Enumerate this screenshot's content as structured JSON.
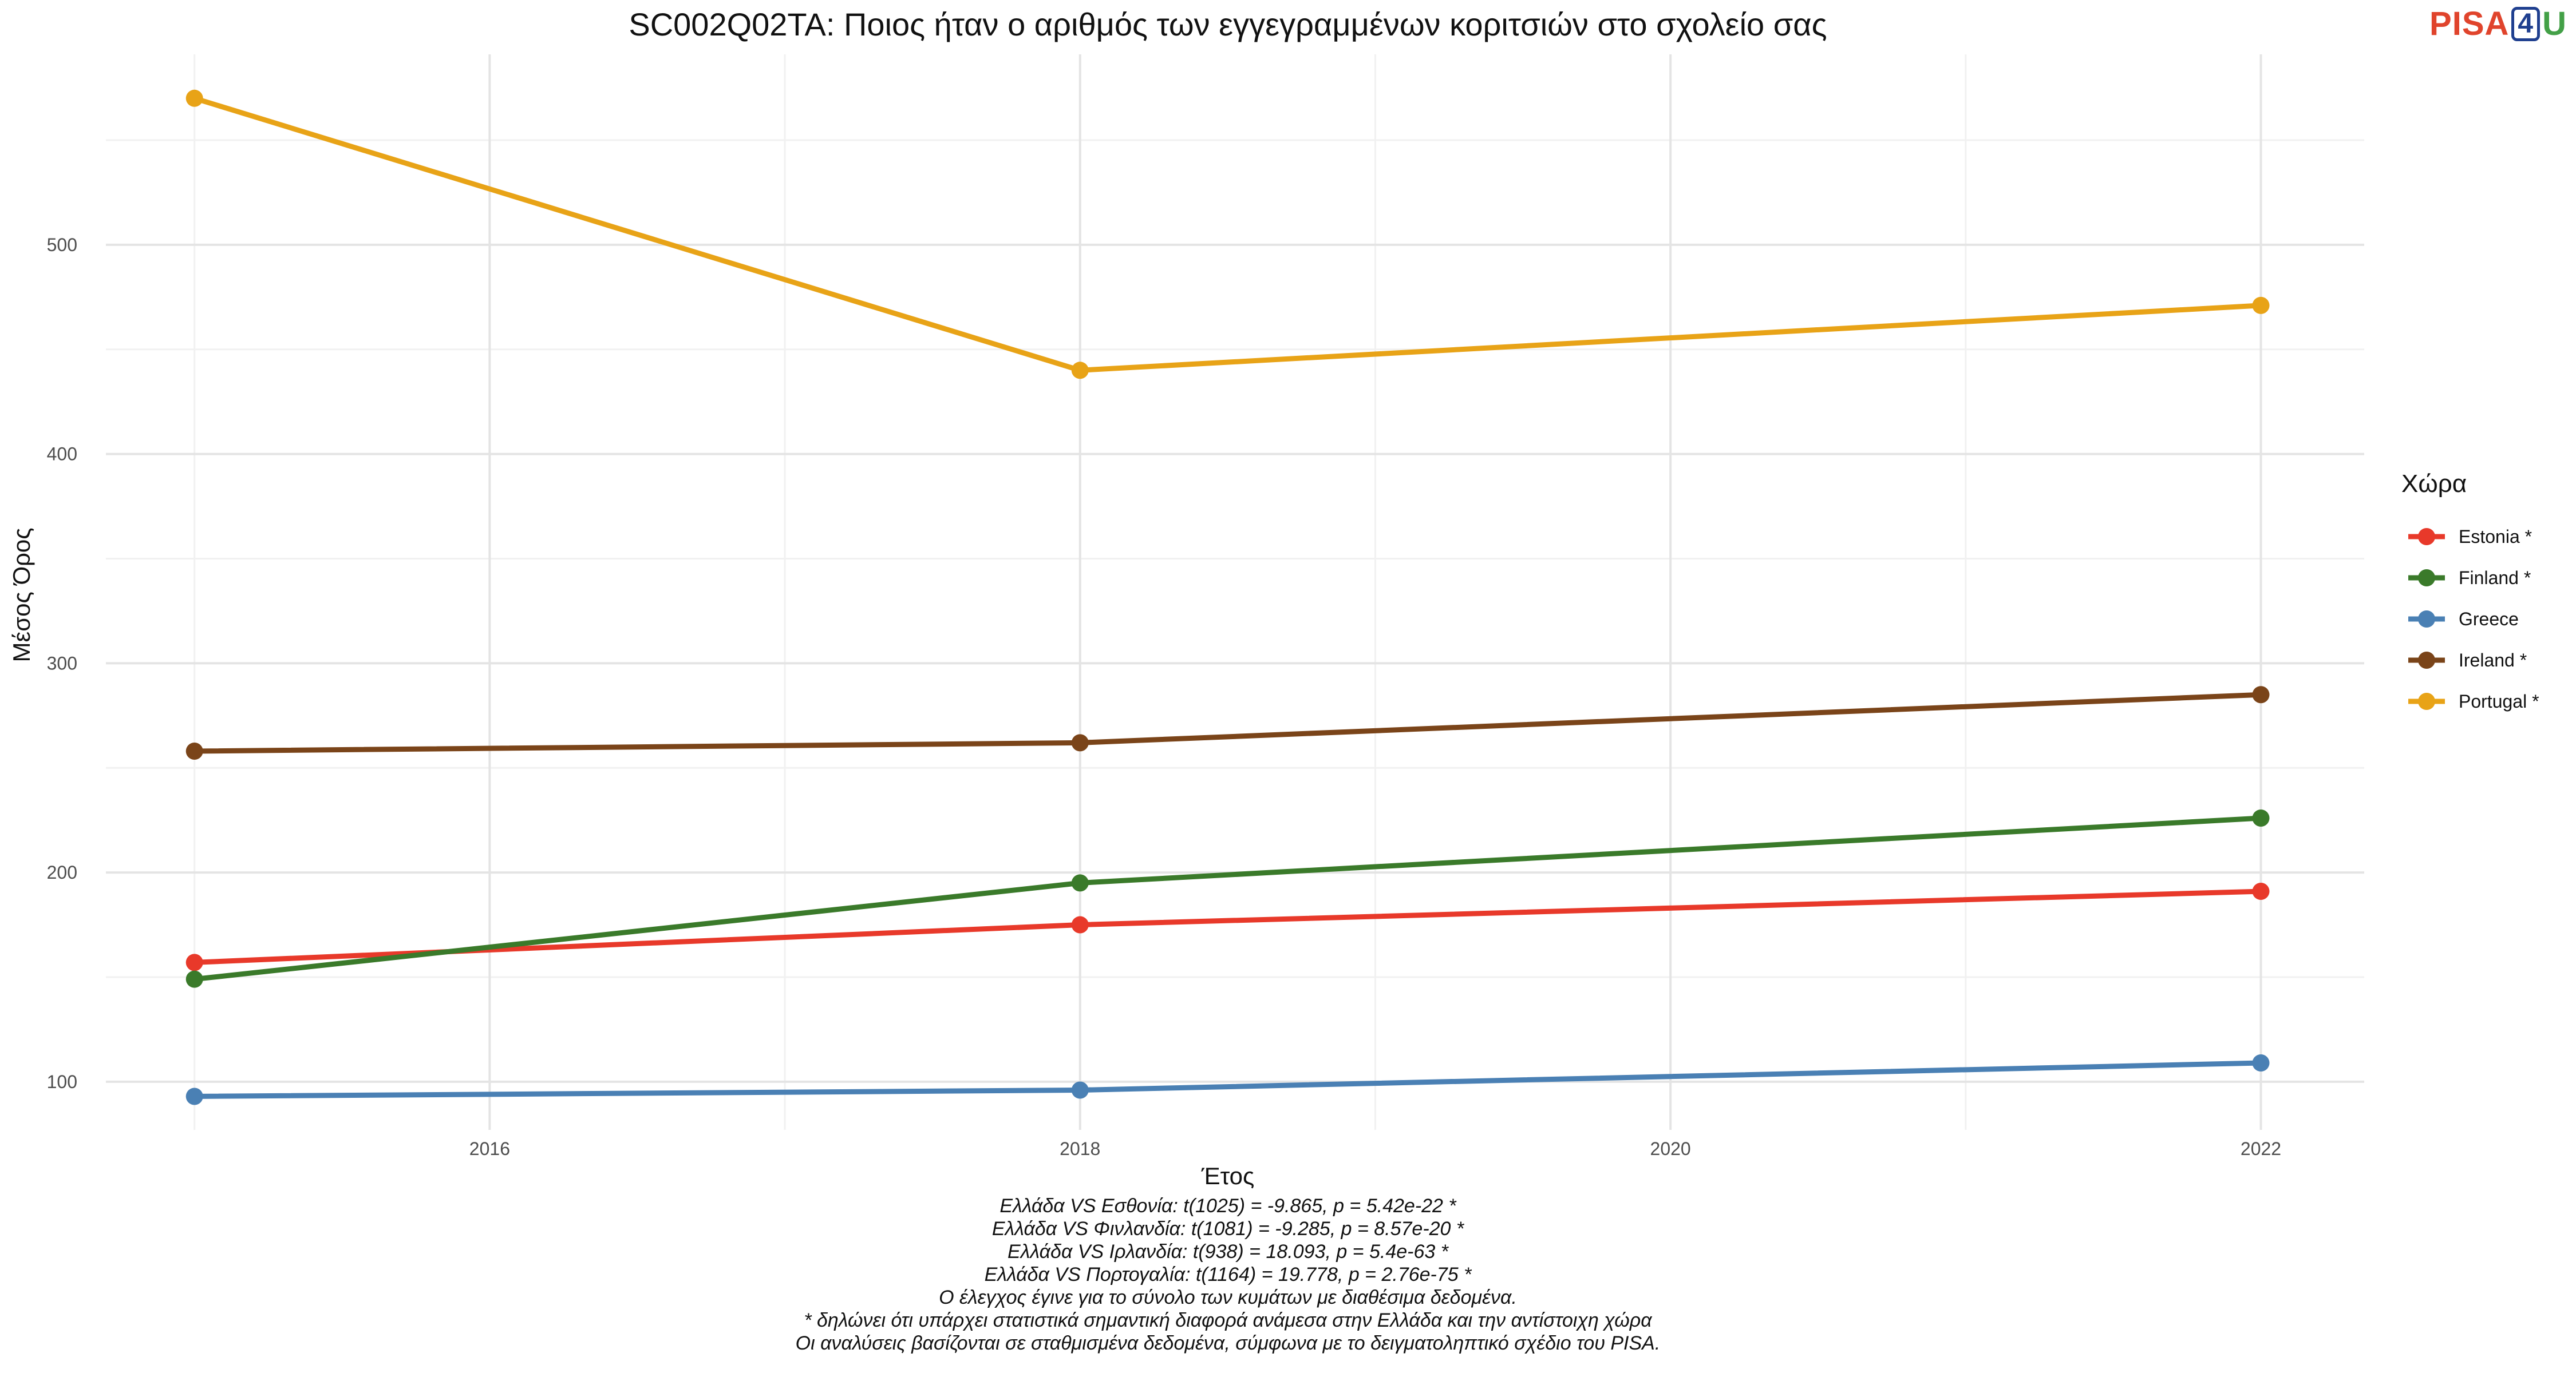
{
  "chart_data": {
    "type": "line",
    "title": "SC002Q02TA: Ποιος ήταν ο αριθμός των εγγεγραμμένων κοριτσιών στο σχολείο σας",
    "xlabel": "Έτος",
    "ylabel": "Μέσος Όρος",
    "xlim": [
      2014.7,
      2022.35
    ],
    "ylim": [
      77,
      591
    ],
    "x_ticks": [
      2016,
      2018,
      2020,
      2022
    ],
    "y_ticks": [
      100,
      200,
      300,
      400,
      500
    ],
    "grid": true,
    "legend": {
      "title": "Χώρα",
      "position": "right"
    },
    "series": [
      {
        "name": "Estonia *",
        "color": "#E8392A",
        "x": [
          2015,
          2018,
          2022
        ],
        "y": [
          157,
          175,
          191
        ]
      },
      {
        "name": "Finland *",
        "color": "#3A7A2A",
        "x": [
          2015,
          2018,
          2022
        ],
        "y": [
          149,
          195,
          226
        ]
      },
      {
        "name": "Greece",
        "color": "#4A80B4",
        "x": [
          2015,
          2018,
          2022
        ],
        "y": [
          93,
          96,
          109
        ]
      },
      {
        "name": "Ireland *",
        "color": "#7A4419",
        "x": [
          2015,
          2018,
          2022
        ],
        "y": [
          258,
          262,
          285
        ]
      },
      {
        "name": "Portugal *",
        "color": "#E8A317",
        "x": [
          2015,
          2018,
          2022
        ],
        "y": [
          570,
          440,
          471
        ]
      }
    ]
  },
  "logo": {
    "pisa": "PISA",
    "four": "4",
    "u": "U"
  },
  "caption": [
    "Ελλάδα VS Εσθονία: t(1025) = -9.865, p = 5.42e-22 *",
    "Ελλάδα VS Φινλανδία: t(1081) = -9.285, p = 8.57e-20 *",
    "Ελλάδα VS Ιρλανδία: t(938) = 18.093, p = 5.4e-63 *",
    "Ελλάδα VS Πορτογαλία: t(1164) = 19.778, p = 2.76e-75 *",
    "Ο έλεγχος έγινε για το σύνολο των κυμάτων με διαθέσιμα δεδομένα.",
    "* δηλώνει ότι υπάρχει στατιστικά σημαντική διαφορά ανάμεσα στην Ελλάδα και την αντίστοιχη χώρα",
    "Οι αναλύσεις βασίζονται σε σταθμισμένα δεδομένα, σύμφωνα με το δειγματοληπτικό σχέδιο του PISA."
  ]
}
